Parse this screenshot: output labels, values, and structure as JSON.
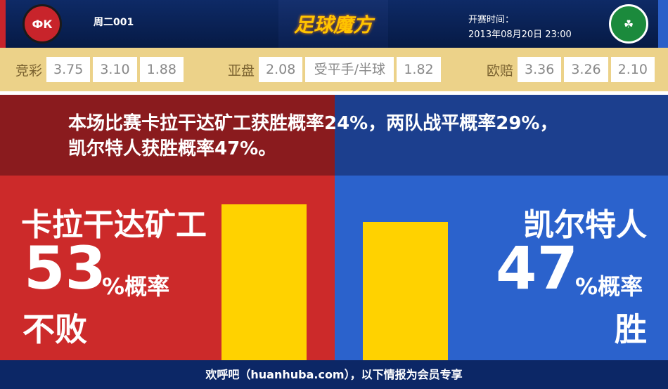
{
  "header": {
    "match_no": "周二001",
    "logo": "足球魔方",
    "time_label": "开赛时间：",
    "time_value": "2013年08月20日 23:00",
    "home_badge": "ФК",
    "away_badge": "☘"
  },
  "odds": {
    "jingcai": {
      "label": "竞彩",
      "values": [
        "3.75",
        "3.10",
        "1.88"
      ]
    },
    "yapan": {
      "label": "亚盘",
      "values": [
        "2.08",
        "受平手/半球",
        "1.82"
      ]
    },
    "ouzhou": {
      "label": "欧赔",
      "values": [
        "3.36",
        "3.26",
        "2.10"
      ]
    }
  },
  "summary": "本场比赛卡拉干达矿工获胜概率24%，两队战平概率29%，凯尔特人获胜概率47%。",
  "home": {
    "name": "卡拉干达矿工",
    "percent": "53",
    "unit": "%概率",
    "outcome": "不败",
    "bar_value": 53
  },
  "away": {
    "name": "凯尔特人",
    "percent": "47",
    "unit": "%概率",
    "outcome": "胜",
    "bar_value": 47
  },
  "colors": {
    "home": "#cc2a2a",
    "away": "#2b62cc",
    "bar": "#ffd200",
    "odds_bg": "#ecd289"
  },
  "footer": "欢呼吧（huanhuba.com），以下情报为会员专享"
}
